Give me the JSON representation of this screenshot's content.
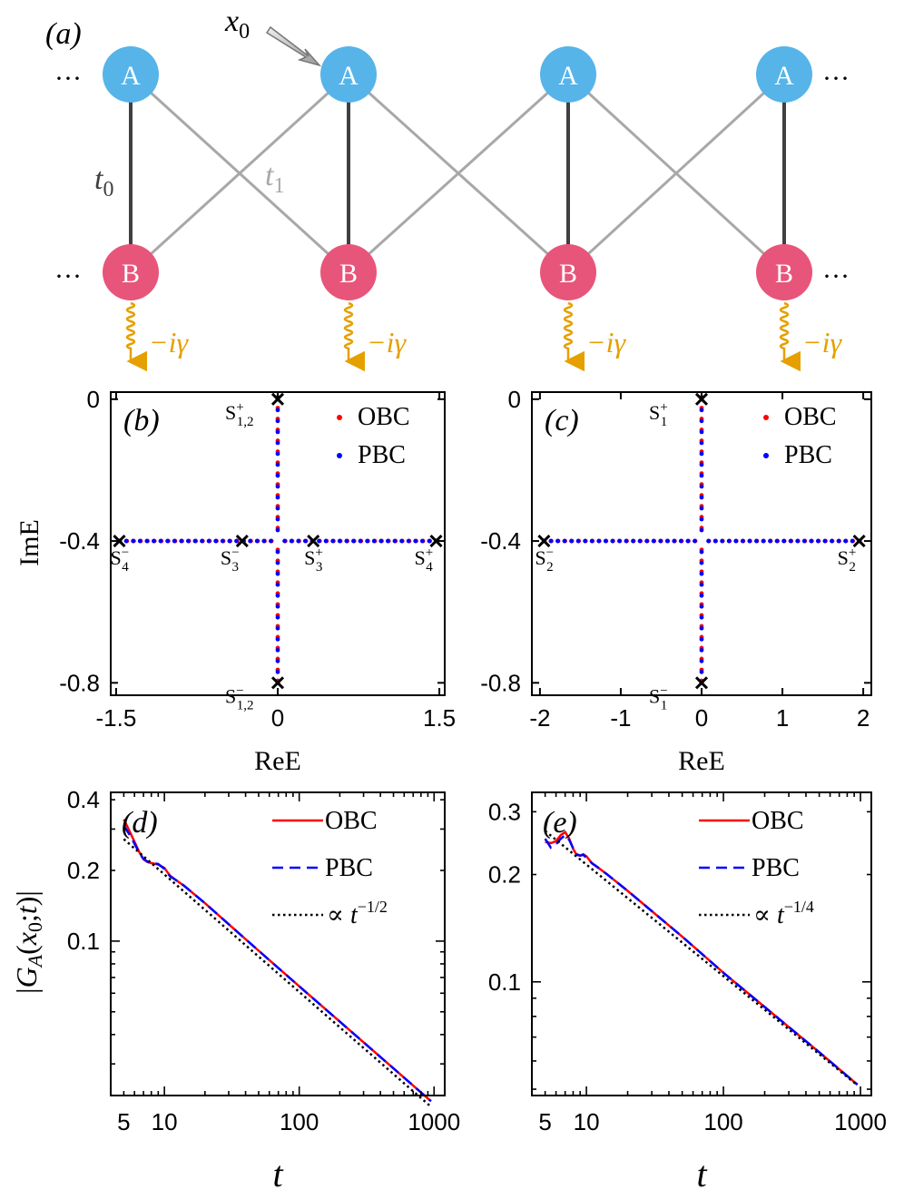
{
  "panel_labels": {
    "a": "(a)",
    "b": "(b)",
    "c": "(c)",
    "d": "(d)",
    "e": "(e)"
  },
  "lattice": {
    "site_a_label": "A",
    "site_b_label": "B",
    "ellipsis": "···",
    "x0_label": "x0",
    "t0_label": "t0",
    "t1_label": "t1",
    "loss_label": "−iγ",
    "colors": {
      "a_site": "#56b4e9",
      "b_site": "#e8557a",
      "t0_bond": "#404040",
      "t1_bond": "#a8a8a8",
      "loss": "#e5a000"
    }
  },
  "chart_data": [
    {
      "type": "scatter",
      "panel": "(b)",
      "xlabel": "ReE",
      "ylabel": "ImE",
      "xlim": [
        -1.55,
        1.55
      ],
      "ylim": [
        -0.835,
        0.02
      ],
      "xticks": [
        -1.5,
        0,
        1.5
      ],
      "xticklabels": [
        "-1.5",
        "0",
        "1.5"
      ],
      "yticks": [
        0,
        -0.4,
        -0.8
      ],
      "yticklabels": [
        "0",
        "-0.4",
        "-0.8"
      ],
      "legend": {
        "placement": "top-right",
        "entries": [
          "OBC",
          "PBC"
        ]
      },
      "series": [
        {
          "name": "OBC",
          "color": "#ff0000",
          "segments": [
            {
              "from": [
                0,
                0
              ],
              "to": [
                0,
                -0.8
              ]
            },
            {
              "from": [
                -1.47,
                -0.4
              ],
              "to": [
                1.47,
                -0.4
              ]
            }
          ]
        },
        {
          "name": "PBC",
          "color": "#0000ff",
          "segments": [
            {
              "from": [
                0,
                0
              ],
              "to": [
                0,
                -0.8
              ]
            },
            {
              "from": [
                -1.47,
                -0.4
              ],
              "to": [
                1.47,
                -0.4
              ]
            }
          ]
        }
      ],
      "markers": [
        {
          "x": 0,
          "y": 0,
          "label": "S",
          "sup": "+",
          "sub": "1,2",
          "pos": "upper-left"
        },
        {
          "x": 0,
          "y": -0.8,
          "label": "S",
          "sup": "−",
          "sub": "1,2",
          "pos": "upper-left"
        },
        {
          "x": -1.47,
          "y": -0.4,
          "label": "S",
          "sup": "−",
          "sub": "4",
          "pos": "below"
        },
        {
          "x": -0.33,
          "y": -0.4,
          "label": "S",
          "sup": "−",
          "sub": "3",
          "pos": "below-left"
        },
        {
          "x": 0.33,
          "y": -0.4,
          "label": "S",
          "sup": "+",
          "sub": "3",
          "pos": "below"
        },
        {
          "x": 1.47,
          "y": -0.4,
          "label": "S",
          "sup": "+",
          "sub": "4",
          "pos": "below-left"
        }
      ]
    },
    {
      "type": "scatter",
      "panel": "(c)",
      "xlabel": "ReE",
      "ylabel": "",
      "xlim": [
        -2.1,
        2.1
      ],
      "ylim": [
        -0.835,
        0.02
      ],
      "xticks": [
        -2,
        -1,
        0,
        1,
        2
      ],
      "xticklabels": [
        "-2",
        "-1",
        "0",
        "1",
        "2"
      ],
      "yticks": [
        0,
        -0.4,
        -0.8
      ],
      "yticklabels": [
        "0",
        "-0.4",
        "-0.8"
      ],
      "legend": {
        "placement": "top-right",
        "entries": [
          "OBC",
          "PBC"
        ]
      },
      "series": [
        {
          "name": "OBC",
          "color": "#ff0000",
          "segments": [
            {
              "from": [
                0,
                0
              ],
              "to": [
                0,
                -0.8
              ]
            },
            {
              "from": [
                -1.95,
                -0.4
              ],
              "to": [
                1.95,
                -0.4
              ]
            }
          ]
        },
        {
          "name": "PBC",
          "color": "#0000ff",
          "segments": [
            {
              "from": [
                0,
                0
              ],
              "to": [
                0,
                -0.8
              ]
            },
            {
              "from": [
                -1.95,
                -0.4
              ],
              "to": [
                1.95,
                -0.4
              ]
            }
          ]
        }
      ],
      "markers": [
        {
          "x": 0,
          "y": 0,
          "label": "S",
          "sup": "+",
          "sub": "1",
          "pos": "upper-left"
        },
        {
          "x": 0,
          "y": -0.8,
          "label": "S",
          "sup": "−",
          "sub": "1",
          "pos": "upper-left"
        },
        {
          "x": -1.95,
          "y": -0.4,
          "label": "S",
          "sup": "−",
          "sub": "2",
          "pos": "below"
        },
        {
          "x": 1.95,
          "y": -0.4,
          "label": "S",
          "sup": "+",
          "sub": "2",
          "pos": "below-left"
        }
      ]
    },
    {
      "type": "line",
      "panel": "(d)",
      "xscale": "log",
      "yscale": "log",
      "xlabel": "t",
      "ylabel": "|GA(x0;t)|",
      "xlim": [
        4,
        1200
      ],
      "ylim": [
        0.022,
        0.43
      ],
      "xticks": [
        5,
        10,
        100,
        1000
      ],
      "xticklabels": [
        "5",
        "10",
        "100",
        "1000"
      ],
      "yticks": [
        0.1,
        0.2,
        0.4
      ],
      "yticklabels": [
        "0.1",
        "0.2",
        "0.4"
      ],
      "legend": {
        "placement": "top-right",
        "entries": [
          "OBC",
          "PBC",
          "∝ t^{-1/2}"
        ]
      },
      "series": [
        {
          "name": "OBC",
          "color": "#ff0000",
          "style": "solid",
          "x": [
            5,
            5.5,
            6,
            6.5,
            7,
            7.5,
            8,
            9,
            10,
            11,
            12,
            14,
            20,
            50,
            100,
            200,
            500,
            950
          ],
          "y": [
            0.33,
            0.295,
            0.265,
            0.24,
            0.223,
            0.217,
            0.215,
            0.212,
            0.205,
            0.19,
            0.183,
            0.172,
            0.145,
            0.091,
            0.0642,
            0.0454,
            0.0287,
            0.0208
          ]
        },
        {
          "name": "PBC",
          "color": "#0000ff",
          "style": "dashed",
          "x": [
            5,
            5.5,
            6,
            6.5,
            7,
            7.5,
            8,
            9,
            10,
            11,
            12,
            14,
            20,
            50,
            100,
            200,
            500,
            950
          ],
          "y": [
            0.31,
            0.285,
            0.26,
            0.238,
            0.224,
            0.218,
            0.216,
            0.213,
            0.203,
            0.189,
            0.183,
            0.172,
            0.145,
            0.091,
            0.0642,
            0.0454,
            0.0287,
            0.0208
          ]
        },
        {
          "name": "∝ t^{-1/2}",
          "color": "#000000",
          "style": "dotted",
          "x": [
            5,
            950
          ],
          "y": [
            0.272,
            0.0197
          ]
        }
      ]
    },
    {
      "type": "line",
      "panel": "(e)",
      "xscale": "log",
      "yscale": "log",
      "xlabel": "t",
      "ylabel": "",
      "xlim": [
        4,
        1200
      ],
      "ylim": [
        0.048,
        0.34
      ],
      "xticks": [
        5,
        10,
        100,
        1000
      ],
      "xticklabels": [
        "5",
        "10",
        "100",
        "1000"
      ],
      "yticks": [
        0.1,
        0.2,
        0.3
      ],
      "yticklabels": [
        "0.1",
        "0.2",
        "0.3"
      ],
      "legend": {
        "placement": "top-right",
        "entries": [
          "OBC",
          "PBC",
          "∝ t^{-1/4}"
        ]
      },
      "series": [
        {
          "name": "OBC",
          "color": "#ff0000",
          "style": "solid",
          "x": [
            5,
            5.5,
            6,
            6.5,
            7,
            7.5,
            8,
            8.5,
            9,
            9.5,
            10,
            11,
            12,
            14,
            20,
            50,
            100,
            200,
            500,
            950
          ],
          "y": [
            0.247,
            0.245,
            0.248,
            0.258,
            0.263,
            0.252,
            0.236,
            0.227,
            0.226,
            0.228,
            0.225,
            0.215,
            0.21,
            0.201,
            0.18,
            0.134,
            0.106,
            0.085,
            0.0635,
            0.0515
          ]
        },
        {
          "name": "PBC",
          "color": "#0000ff",
          "style": "dashed",
          "x": [
            5,
            5.5,
            6,
            6.5,
            7,
            7.5,
            8,
            8.5,
            9,
            9.5,
            10,
            11,
            12,
            14,
            20,
            50,
            100,
            200,
            500,
            950
          ],
          "y": [
            0.252,
            0.238,
            0.243,
            0.252,
            0.258,
            0.25,
            0.237,
            0.228,
            0.226,
            0.227,
            0.223,
            0.215,
            0.21,
            0.201,
            0.18,
            0.134,
            0.106,
            0.085,
            0.0635,
            0.0515
          ]
        },
        {
          "name": "∝ t^{-1/4}",
          "color": "#000000",
          "style": "dotted",
          "x": [
            5,
            950
          ],
          "y": [
            0.265,
            0.0513
          ]
        }
      ]
    }
  ]
}
